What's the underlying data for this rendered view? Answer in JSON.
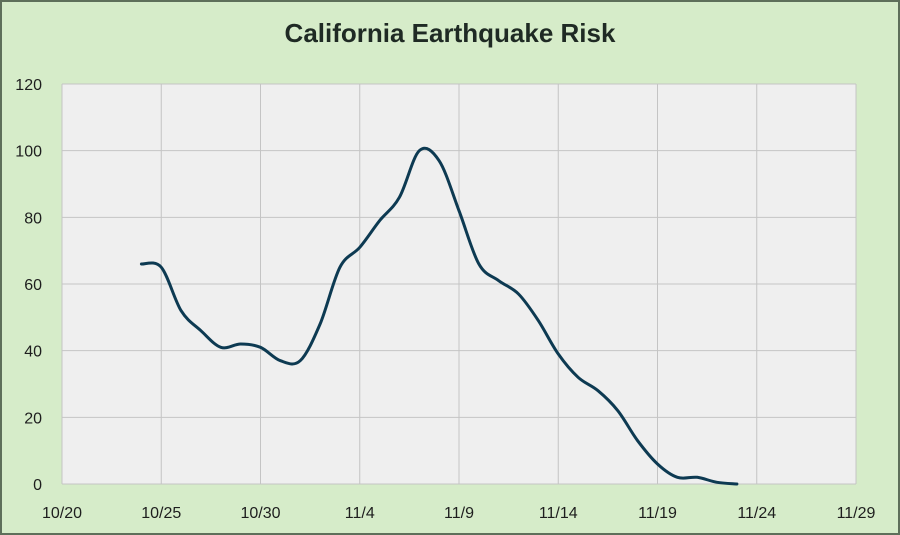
{
  "chart_data": {
    "type": "line",
    "title": "California Earthquake Risk",
    "xlabel": "",
    "ylabel": "",
    "x_ticks": [
      "10/20",
      "10/25",
      "10/30",
      "11/4",
      "11/9",
      "11/14",
      "11/19",
      "11/24",
      "11/29"
    ],
    "y_ticks": [
      "0",
      "20",
      "40",
      "60",
      "80",
      "100",
      "120"
    ],
    "xlim": [
      "2024-10-20",
      "2024-11-29"
    ],
    "ylim": [
      0,
      120
    ],
    "grid": true,
    "legend": "none",
    "line_color": "#0d3a52",
    "series": [
      {
        "name": "",
        "points": [
          {
            "x": "2024-10-24",
            "y": 66
          },
          {
            "x": "2024-10-25",
            "y": 65
          },
          {
            "x": "2024-10-26",
            "y": 52
          },
          {
            "x": "2024-10-27",
            "y": 46
          },
          {
            "x": "2024-10-28",
            "y": 41
          },
          {
            "x": "2024-10-29",
            "y": 42
          },
          {
            "x": "2024-10-30",
            "y": 41
          },
          {
            "x": "2024-10-31",
            "y": 37
          },
          {
            "x": "2024-11-01",
            "y": 37
          },
          {
            "x": "2024-11-02",
            "y": 48
          },
          {
            "x": "2024-11-03",
            "y": 65
          },
          {
            "x": "2024-11-04",
            "y": 71
          },
          {
            "x": "2024-11-05",
            "y": 79
          },
          {
            "x": "2024-11-06",
            "y": 86
          },
          {
            "x": "2024-11-07",
            "y": 100
          },
          {
            "x": "2024-11-08",
            "y": 97
          },
          {
            "x": "2024-11-09",
            "y": 82
          },
          {
            "x": "2024-11-10",
            "y": 66
          },
          {
            "x": "2024-11-11",
            "y": 61
          },
          {
            "x": "2024-11-12",
            "y": 57
          },
          {
            "x": "2024-11-13",
            "y": 49
          },
          {
            "x": "2024-11-14",
            "y": 39
          },
          {
            "x": "2024-11-15",
            "y": 32
          },
          {
            "x": "2024-11-16",
            "y": 28
          },
          {
            "x": "2024-11-17",
            "y": 22
          },
          {
            "x": "2024-11-18",
            "y": 13
          },
          {
            "x": "2024-11-19",
            "y": 6
          },
          {
            "x": "2024-11-20",
            "y": 2
          },
          {
            "x": "2024-11-21",
            "y": 2
          },
          {
            "x": "2024-11-22",
            "y": 0.5
          },
          {
            "x": "2024-11-23",
            "y": 0
          }
        ]
      }
    ]
  }
}
